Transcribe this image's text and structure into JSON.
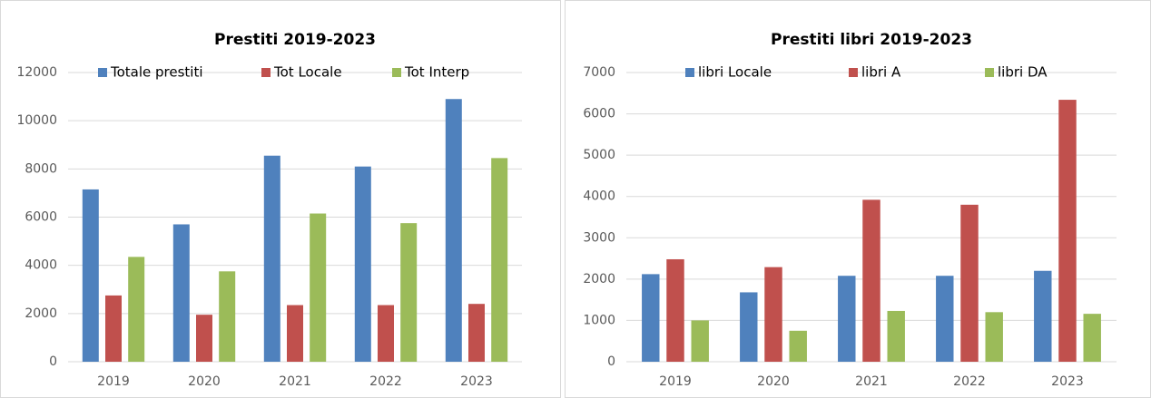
{
  "chart_data": [
    {
      "type": "bar",
      "title": "Prestiti 2019-2023",
      "categories": [
        "2019",
        "2020",
        "2021",
        "2022",
        "2023"
      ],
      "series": [
        {
          "name": "Totale prestiti",
          "color": "#4f81bd",
          "values": [
            7150,
            5700,
            8550,
            8100,
            10900
          ]
        },
        {
          "name": "Tot Locale",
          "color": "#c0504d",
          "values": [
            2750,
            1950,
            2350,
            2350,
            2400
          ]
        },
        {
          "name": "Tot Interp",
          "color": "#9bbb59",
          "values": [
            4350,
            3750,
            6150,
            5750,
            8450
          ]
        }
      ],
      "ylim": [
        0,
        12000
      ],
      "yticks": [
        0,
        2000,
        4000,
        6000,
        8000,
        10000,
        12000
      ],
      "grid": true
    },
    {
      "type": "bar",
      "title": "Prestiti libri  2019-2023",
      "categories": [
        "2019",
        "2020",
        "2021",
        "2022",
        "2023"
      ],
      "series": [
        {
          "name": "libri Locale",
          "color": "#4f81bd",
          "values": [
            2120,
            1680,
            2080,
            2080,
            2200
          ]
        },
        {
          "name": "libri A",
          "color": "#c0504d",
          "values": [
            2480,
            2290,
            3920,
            3800,
            6340
          ]
        },
        {
          "name": "libri DA",
          "color": "#9bbb59",
          "values": [
            1000,
            750,
            1230,
            1200,
            1160
          ]
        }
      ],
      "ylim": [
        0,
        7000
      ],
      "yticks": [
        0,
        1000,
        2000,
        3000,
        4000,
        5000,
        6000,
        7000
      ],
      "grid": true
    }
  ]
}
